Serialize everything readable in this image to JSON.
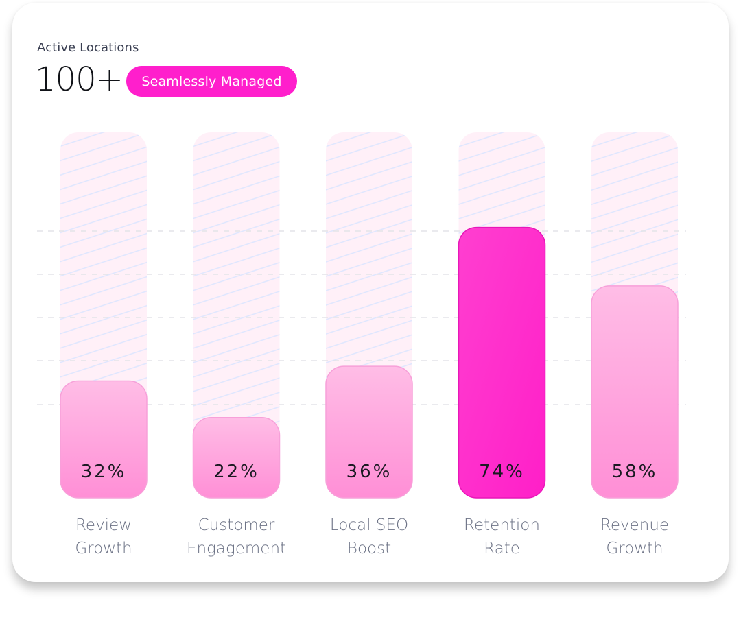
{
  "header": {
    "subtitle": "Active Locations",
    "big_number": "100+",
    "badge": "Seamlessly Managed"
  },
  "colors": {
    "highlight": "#ff1fcc",
    "bar_light_top": "#ffb8e4",
    "bar_light_bottom": "#ff8fd6",
    "track_bg": "#fff0f8",
    "hatch": "#dde6ff",
    "grid": "#e4e4e8"
  },
  "chart_data": {
    "type": "bar",
    "categories": [
      "Review\nGrowth",
      "Customer\nEngagement",
      "Local SEO\nBoost",
      "Retention\nRate",
      "Revenue\nGrowth"
    ],
    "values": [
      32,
      22,
      36,
      74,
      58
    ],
    "value_labels": [
      "32%",
      "22%",
      "36%",
      "74%",
      "58%"
    ],
    "highlighted_index": 3,
    "ylim": [
      0,
      100
    ],
    "grid": true,
    "legend": "none"
  }
}
